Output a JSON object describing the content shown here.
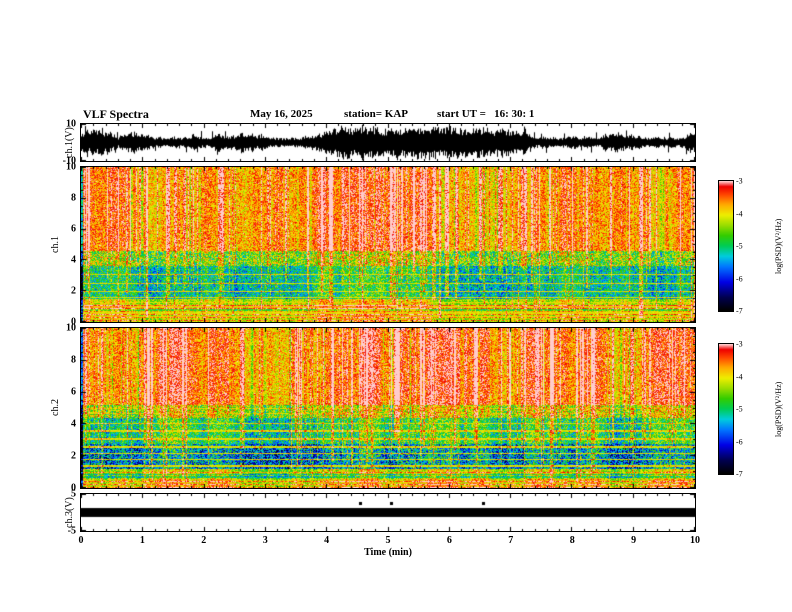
{
  "title": "VLF Spectra",
  "header": {
    "date": "May 16, 2025",
    "station": "station= KAP",
    "start_ut": "start UT =   16: 30: 1"
  },
  "xaxis": {
    "label": "Time (min)",
    "min": 0,
    "max": 10,
    "ticks": [
      "0",
      "1",
      "2",
      "3",
      "4",
      "5",
      "6",
      "7",
      "8",
      "9",
      "10"
    ],
    "tick_values": [
      0,
      1,
      2,
      3,
      4,
      5,
      6,
      7,
      8,
      9,
      10
    ]
  },
  "colormap": {
    "value_range": [
      -7,
      -3
    ],
    "stops": [
      [
        0.0,
        "#000000"
      ],
      [
        0.1,
        "#00004d"
      ],
      [
        0.22,
        "#0000e6"
      ],
      [
        0.34,
        "#0077ff"
      ],
      [
        0.42,
        "#00ccdd"
      ],
      [
        0.5,
        "#00cc55"
      ],
      [
        0.58,
        "#33cc00"
      ],
      [
        0.66,
        "#99dd00"
      ],
      [
        0.74,
        "#eeee00"
      ],
      [
        0.82,
        "#ffaa00"
      ],
      [
        0.9,
        "#ff4400"
      ],
      [
        0.96,
        "#ee0000"
      ],
      [
        1.0,
        "#ffcccc"
      ]
    ]
  },
  "chart_data": [
    {
      "type": "line",
      "name": "ch1_voltage_waveform",
      "ylabel": "ch.1(V)",
      "ylim": [
        -10,
        10
      ],
      "yticks": [
        "10",
        "-10"
      ],
      "ytick_values": [
        10,
        -10
      ],
      "x_range_min": [
        0,
        10
      ],
      "description": "dense broadband audio waveform filling the panel, amplitude roughly ±4 to ±9 V for the whole 10 minutes",
      "signal": {
        "envelope_volts_min": 2.5,
        "envelope_volts_max": 9.3
      },
      "seed": 3
    },
    {
      "type": "heatmap",
      "name": "ch1_spectrogram",
      "ylabel_lines": [
        "ch.1",
        "Frequency (kHz)"
      ],
      "ylim": [
        0,
        10
      ],
      "yticks": [
        "0",
        "2",
        "4",
        "6",
        "8",
        "10"
      ],
      "ytick_values": [
        0,
        2,
        4,
        6,
        8,
        10
      ],
      "x_range_min": [
        0,
        10
      ],
      "value_range": [
        -7,
        -3
      ],
      "bands": [
        {
          "f_khz": [
            4.6,
            10.01
          ],
          "base": -3.55,
          "noise": 0.5
        },
        {
          "f_khz": [
            3.6,
            4.6
          ],
          "base": -4.35,
          "noise": 0.85
        },
        {
          "f_khz": [
            1.45,
            3.6
          ],
          "base": -5.05,
          "noise": 0.7
        },
        {
          "f_khz": [
            1.05,
            1.45
          ],
          "base": -4.1,
          "noise": 0.5
        },
        {
          "f_khz": [
            0.8,
            1.05
          ],
          "base": -3.7,
          "noise": 0.35
        },
        {
          "f_khz": [
            0.5,
            0.8
          ],
          "base": -4.3,
          "noise": 0.5
        },
        {
          "f_khz": [
            0.0,
            0.5
          ],
          "base": -3.9,
          "noise": 0.5
        }
      ],
      "stripe_below_khz": 1.1,
      "harmonic_lines_khz": [
        0.35,
        0.55,
        0.95,
        1.25,
        1.55,
        1.95,
        2.45,
        3.05
      ],
      "streaks": {
        "count": 130,
        "dark_count": 45
      },
      "colorbar": {
        "label": "log(PSD)(V²/Hz)",
        "ticks": [
          "-3",
          "-4",
          "-5",
          "-6",
          "-7"
        ],
        "tick_values": [
          -3,
          -4,
          -5,
          -6,
          -7
        ]
      },
      "seed": 7
    },
    {
      "type": "heatmap",
      "name": "ch2_spectrogram",
      "ylabel_lines": [
        "ch.2",
        "Frequency (kHz)"
      ],
      "ylim": [
        0,
        10
      ],
      "yticks": [
        "0",
        "2",
        "4",
        "6",
        "8",
        "10"
      ],
      "ytick_values": [
        0,
        2,
        4,
        6,
        8,
        10
      ],
      "x_range_min": [
        0,
        10
      ],
      "value_range": [
        -7,
        -3
      ],
      "bands": [
        {
          "f_khz": [
            5.2,
            10.01
          ],
          "base": -3.55,
          "noise": 0.5
        },
        {
          "f_khz": [
            4.4,
            5.2
          ],
          "base": -4.2,
          "noise": 0.8
        },
        {
          "f_khz": [
            2.75,
            4.4
          ],
          "base": -4.95,
          "noise": 0.7
        },
        {
          "f_khz": [
            1.15,
            2.75
          ],
          "base": -5.55,
          "noise": 0.95
        },
        {
          "f_khz": [
            0.85,
            1.15
          ],
          "base": -4.15,
          "noise": 0.5
        },
        {
          "f_khz": [
            0.55,
            0.85
          ],
          "base": -4.9,
          "noise": 0.6
        },
        {
          "f_khz": [
            0.0,
            0.55
          ],
          "base": -3.8,
          "noise": 0.5
        }
      ],
      "stripe_below_khz": 1.1,
      "harmonic_lines_khz": [
        1.35,
        1.75,
        2.15,
        2.55,
        3.05,
        3.55,
        4.05,
        4.65,
        4.95
      ],
      "streaks": {
        "count": 130,
        "dark_count": 45
      },
      "colorbar": {
        "label": "log(PSD)(V²/Hz)",
        "ticks": [
          "-3",
          "-4",
          "-5",
          "-6",
          "-7"
        ],
        "tick_values": [
          -3,
          -4,
          -5,
          -6,
          -7
        ]
      },
      "seed": 13
    },
    {
      "type": "line",
      "name": "ch3_voltage_waveform",
      "ylabel": "ch.3(V)",
      "ylim": [
        -5,
        5
      ],
      "yticks": [
        "5",
        "-5"
      ],
      "ytick_values": [
        5,
        -5
      ],
      "x_range_min": [
        0,
        10
      ],
      "description": "flat saturated black band around 0 V (≈ ±1.2 V) for the full record, with a few small marks above the band near 4.5–6.6 min",
      "band_volts": [
        -1.2,
        1.2
      ],
      "marks_min": [
        4.55,
        5.05,
        6.55
      ],
      "seed": 21
    }
  ]
}
